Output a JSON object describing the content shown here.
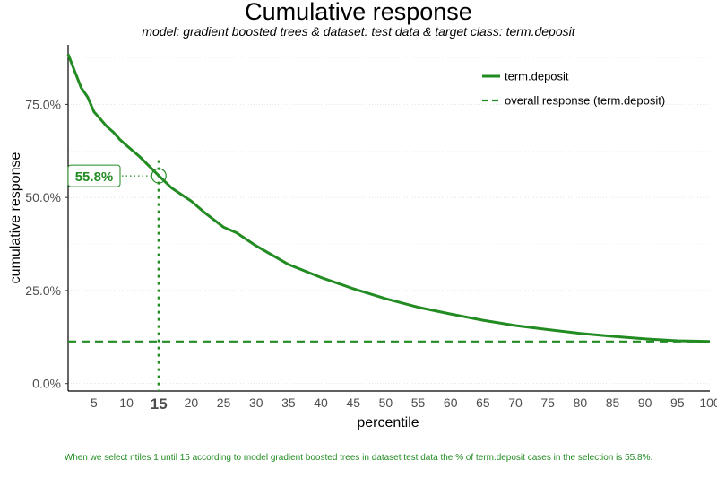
{
  "chart_data": {
    "type": "line",
    "title": "Cumulative response",
    "subtitle": "model: gradient boosted trees  &  dataset: test data  &  target class: term.deposit",
    "xlabel": "percentile",
    "ylabel": "cumulative response",
    "xlim": [
      1,
      100
    ],
    "ylim": [
      -2,
      91
    ],
    "x_ticks": [
      5,
      10,
      15,
      20,
      25,
      30,
      35,
      40,
      45,
      50,
      55,
      60,
      65,
      70,
      75,
      80,
      85,
      90,
      95,
      100
    ],
    "x_tick_labels": [
      "5",
      "10",
      "15",
      "20",
      "25",
      "30",
      "35",
      "40",
      "45",
      "50",
      "55",
      "60",
      "65",
      "70",
      "75",
      "80",
      "85",
      "90",
      "95",
      "100"
    ],
    "highlight_x": 15,
    "y_ticks": [
      0,
      25,
      50,
      75
    ],
    "y_tick_labels": [
      "0.0%",
      "25.0%",
      "50.0%",
      "75.0%"
    ],
    "grid": true,
    "legend_position": "top-right",
    "color": "#228b22",
    "series": [
      {
        "name": "term.deposit",
        "style": "solid",
        "x": [
          1,
          2,
          3,
          4,
          5,
          6,
          7,
          8,
          9,
          10,
          12,
          15,
          17,
          20,
          22,
          25,
          27,
          30,
          35,
          40,
          45,
          50,
          55,
          60,
          65,
          70,
          75,
          80,
          85,
          90,
          95,
          100
        ],
        "values": [
          88.5,
          84,
          79.5,
          77,
          73,
          71,
          69,
          67.5,
          65.5,
          64,
          61,
          55.8,
          52.5,
          49,
          46,
          42,
          40.5,
          37,
          32,
          28.5,
          25.5,
          22.8,
          20.5,
          18.7,
          17,
          15.6,
          14.5,
          13.5,
          12.7,
          12,
          11.5,
          11.3
        ]
      },
      {
        "name": "overall response (term.deposit)",
        "style": "dashed",
        "x": [
          1,
          100
        ],
        "values": [
          11.3,
          11.3
        ]
      }
    ],
    "annotations": [
      {
        "x": 15,
        "y": 55.8,
        "label": "55.8%"
      }
    ],
    "caption": "When we select ntiles 1 until 15 according to model gradient boosted trees in dataset test data the % of term.deposit cases in the selection is 55.8%."
  }
}
